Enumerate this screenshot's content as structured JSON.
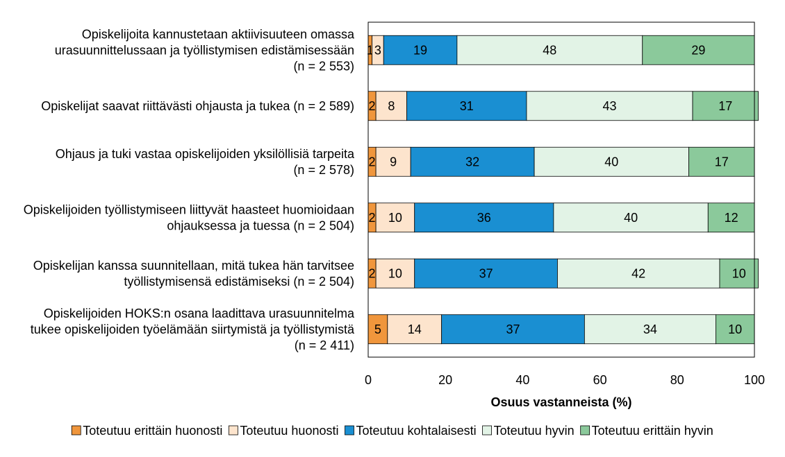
{
  "chart_data": {
    "type": "bar",
    "orientation": "horizontal",
    "stacked": true,
    "xlabel": "Osuus vastanneista (%)",
    "ylabel": "",
    "xlim": [
      0,
      100
    ],
    "xticks": [
      "0",
      "20",
      "40",
      "60",
      "80",
      "100"
    ],
    "grid": false,
    "legend": "bottom",
    "categories": [
      [
        "Opiskelijoita kannustetaan aktiivisuuteen omassa",
        "urasuunnittelussaan ja työllistymisen edistämisessään",
        "(n = 2 553)"
      ],
      [
        "Opiskelijat saavat riittävästi ohjausta ja tukea (n = 2 589)"
      ],
      [
        "Ohjaus ja tuki vastaa opiskelijoiden yksilöllisiä tarpeita",
        "(n = 2 578)"
      ],
      [
        "Opiskelijoiden työllistymiseen liittyvät haasteet huomioidaan",
        "ohjauksessa ja tuessa (n = 2 504)"
      ],
      [
        "Opiskelijan kanssa suunnitellaan, mitä tukea hän tarvitsee",
        "työllistymisensä edistämiseksi (n = 2 504)"
      ],
      [
        "Opiskelijoiden HOKS:n osana laadittava urasuunnitelma",
        "tukee opiskelijoiden työelämään siirtymistä ja työllistymistä",
        "(n = 2 411)"
      ]
    ],
    "series": [
      {
        "name": "Toteutuu erittäin huonosti",
        "color": "#f0963c",
        "values": [
          1,
          2,
          2,
          2,
          2,
          5
        ]
      },
      {
        "name": "Toteutuu huonosti",
        "color": "#fde4cd",
        "values": [
          3,
          8,
          9,
          10,
          10,
          14
        ]
      },
      {
        "name": "Toteutuu kohtalaisesti",
        "color": "#1a8fd2",
        "values": [
          19,
          31,
          32,
          36,
          37,
          37
        ]
      },
      {
        "name": "Toteutuu hyvin",
        "color": "#e2f3e6",
        "values": [
          48,
          43,
          40,
          40,
          42,
          34
        ]
      },
      {
        "name": "Toteutuu erittäin hyvin",
        "color": "#8bc99b",
        "values": [
          29,
          17,
          17,
          12,
          10,
          10
        ]
      }
    ]
  }
}
